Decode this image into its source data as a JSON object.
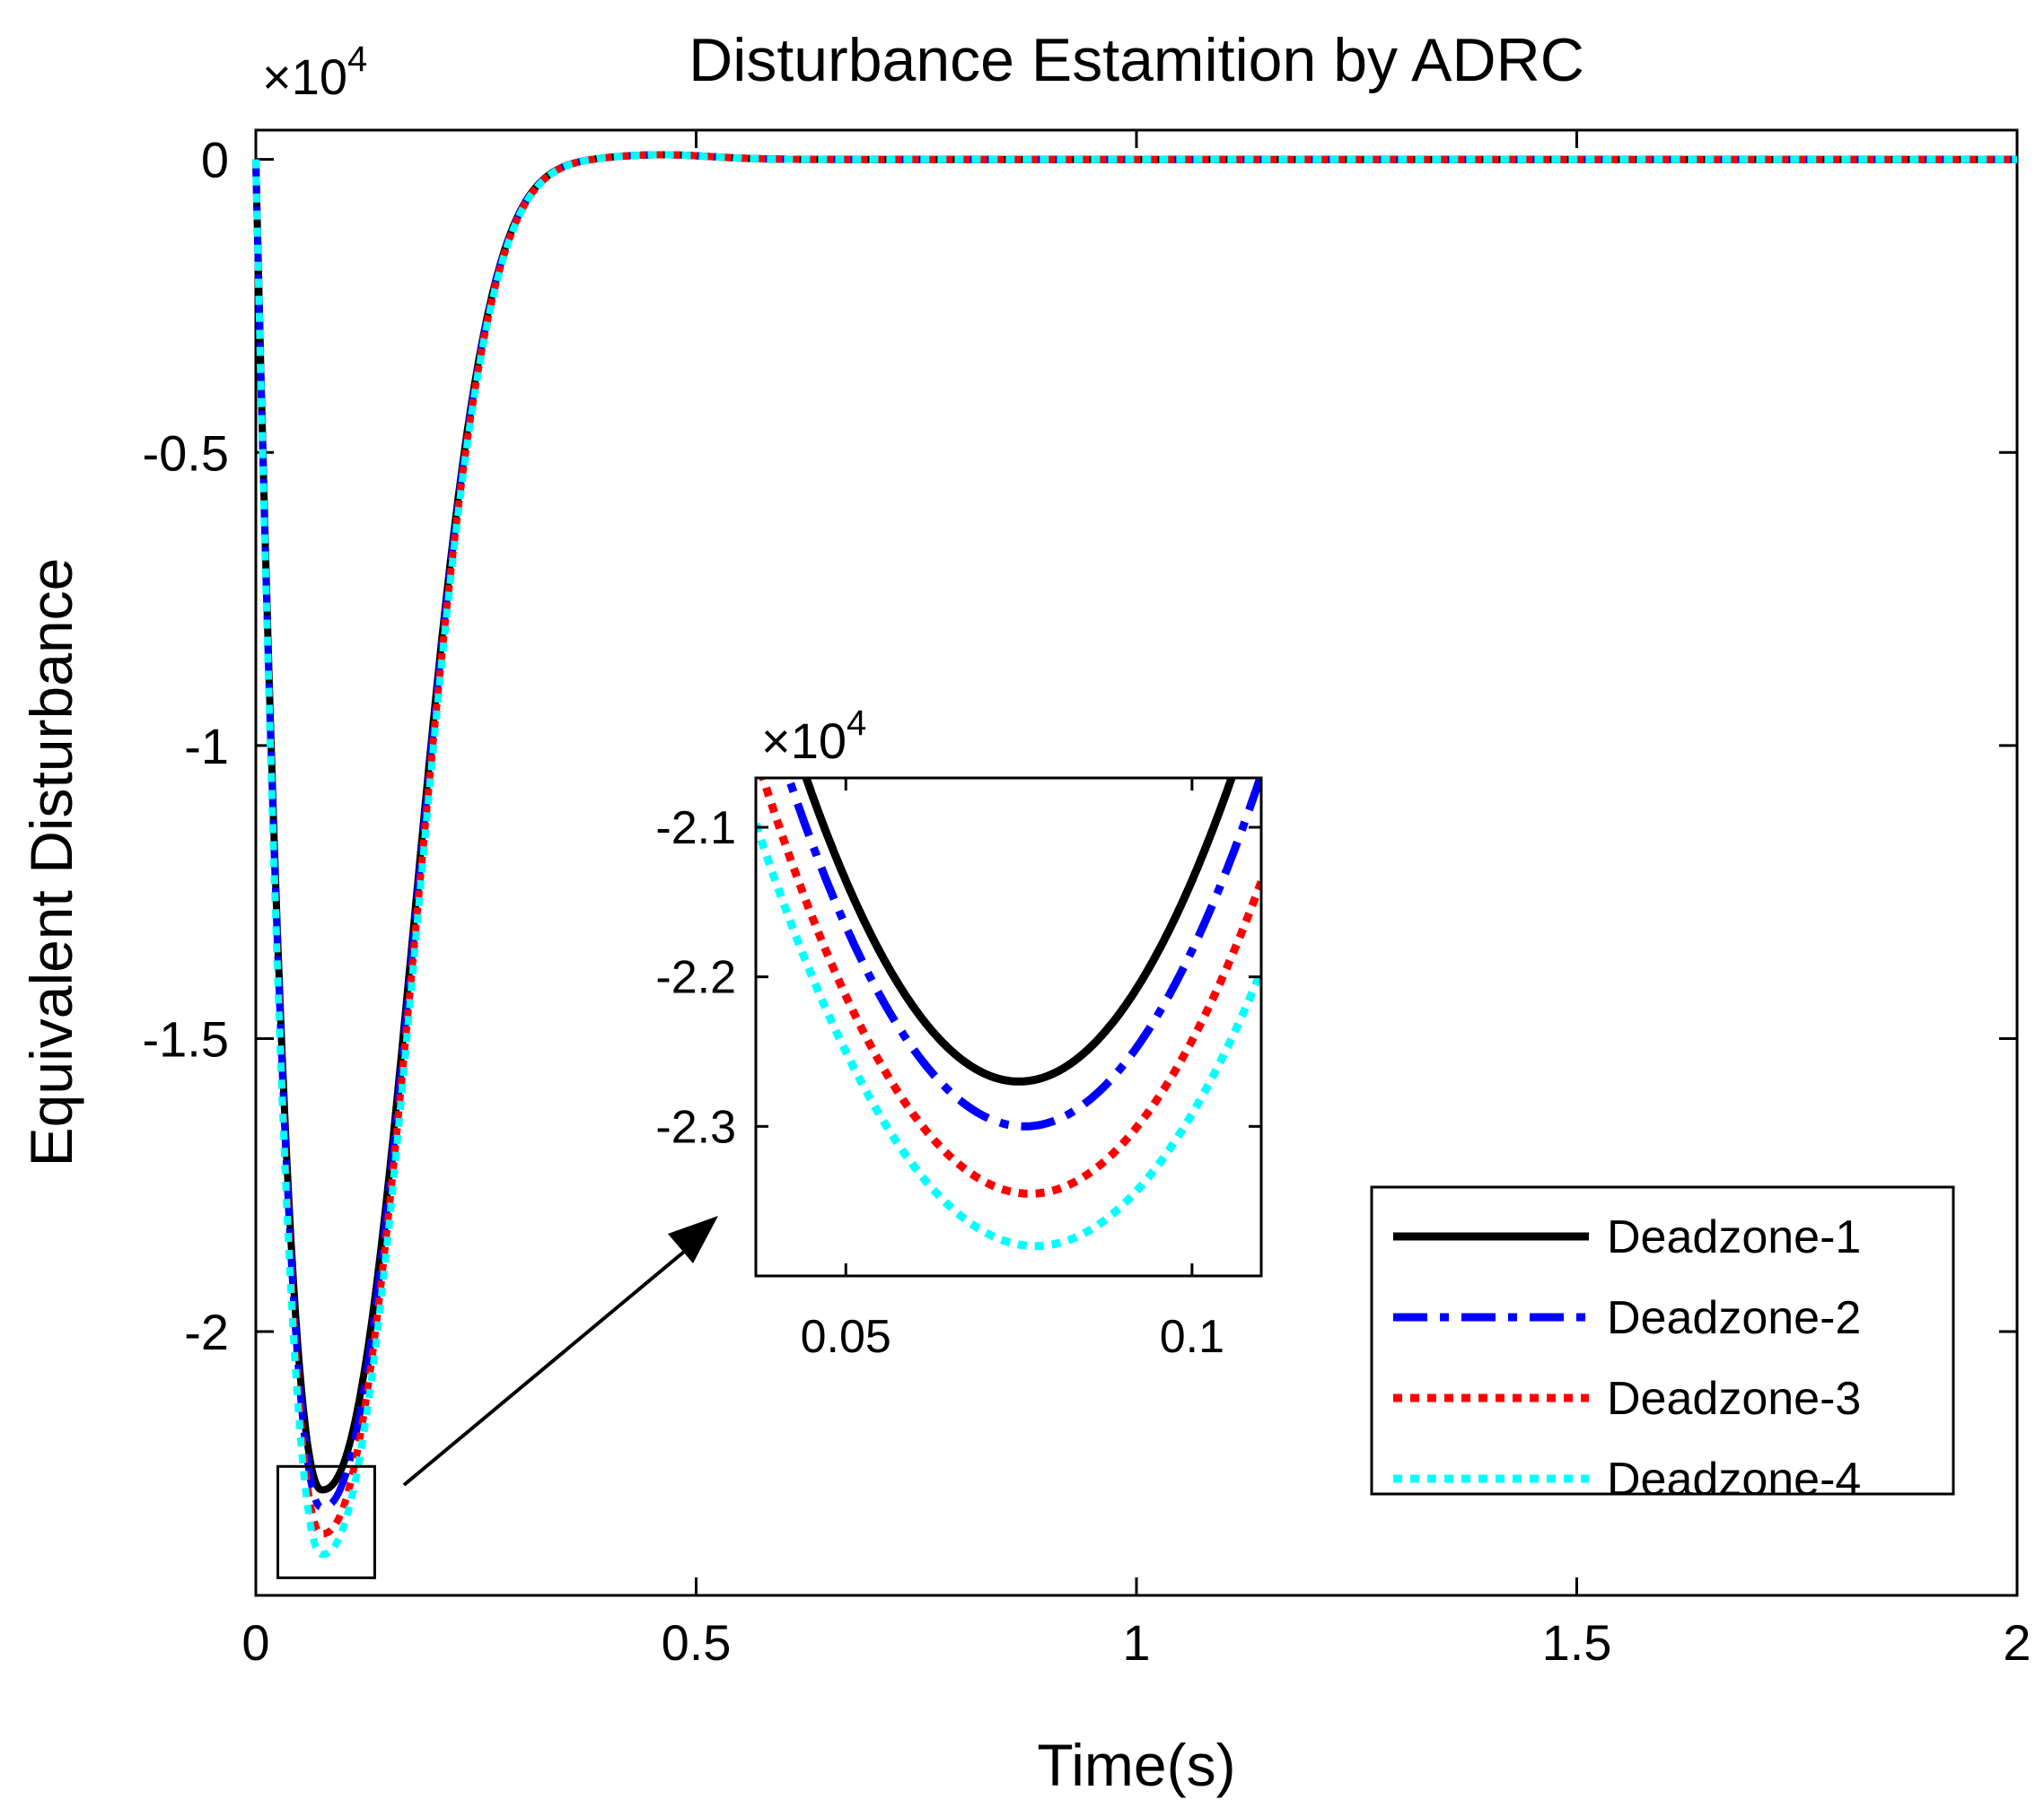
{
  "chart_data": {
    "type": "line",
    "title": "Disturbance Estamition by ADRC",
    "xlabel": "Time(s)",
    "ylabel": "Equivalent Disturbance",
    "xlim": [
      0,
      2
    ],
    "ylim": [
      -2.45,
      0.05
    ],
    "y_multiplier": "×10",
    "y_multiplier_exponent": "4",
    "x_ticks": [
      0,
      0.5,
      1,
      1.5,
      2
    ],
    "x_tick_labels": [
      "0",
      "0.5",
      "1",
      "1.5",
      "2"
    ],
    "y_ticks": [
      0,
      -0.5,
      -1,
      -1.5,
      -2
    ],
    "y_tick_labels": [
      "0",
      "-0.5",
      "-1",
      "-1.5",
      "-2"
    ],
    "legend_position": "bottom-right",
    "series": [
      {
        "name": "Deadzone-1",
        "color": "#000000",
        "style": "solid",
        "min_value": -2.27,
        "min_time": 0.075
      },
      {
        "name": "Deadzone-2",
        "color": "#0000ff",
        "style": "dashdot",
        "min_value": -2.3,
        "min_time": 0.075
      },
      {
        "name": "Deadzone-3",
        "color": "#ff0000",
        "style": "dotted",
        "min_value": -2.345,
        "min_time": 0.075
      },
      {
        "name": "Deadzone-4",
        "color": "#00ffff",
        "style": "dotted",
        "min_value": -2.38,
        "min_time": 0.075
      }
    ],
    "inset": {
      "xlim": [
        0.037,
        0.11
      ],
      "ylim": [
        -2.4,
        -2.067
      ],
      "x_ticks": [
        0.05,
        0.1
      ],
      "x_tick_labels": [
        "0.05",
        "0.1"
      ],
      "y_ticks": [
        -2.1,
        -2.2,
        -2.3
      ],
      "y_tick_labels": [
        "-2.1",
        "-2.2",
        "-2.3"
      ],
      "y_multiplier": "×10",
      "y_multiplier_exponent": "4",
      "zoom_region": {
        "x": [
          0.025,
          0.135
        ],
        "y": [
          -2.42,
          -2.23
        ]
      }
    }
  }
}
